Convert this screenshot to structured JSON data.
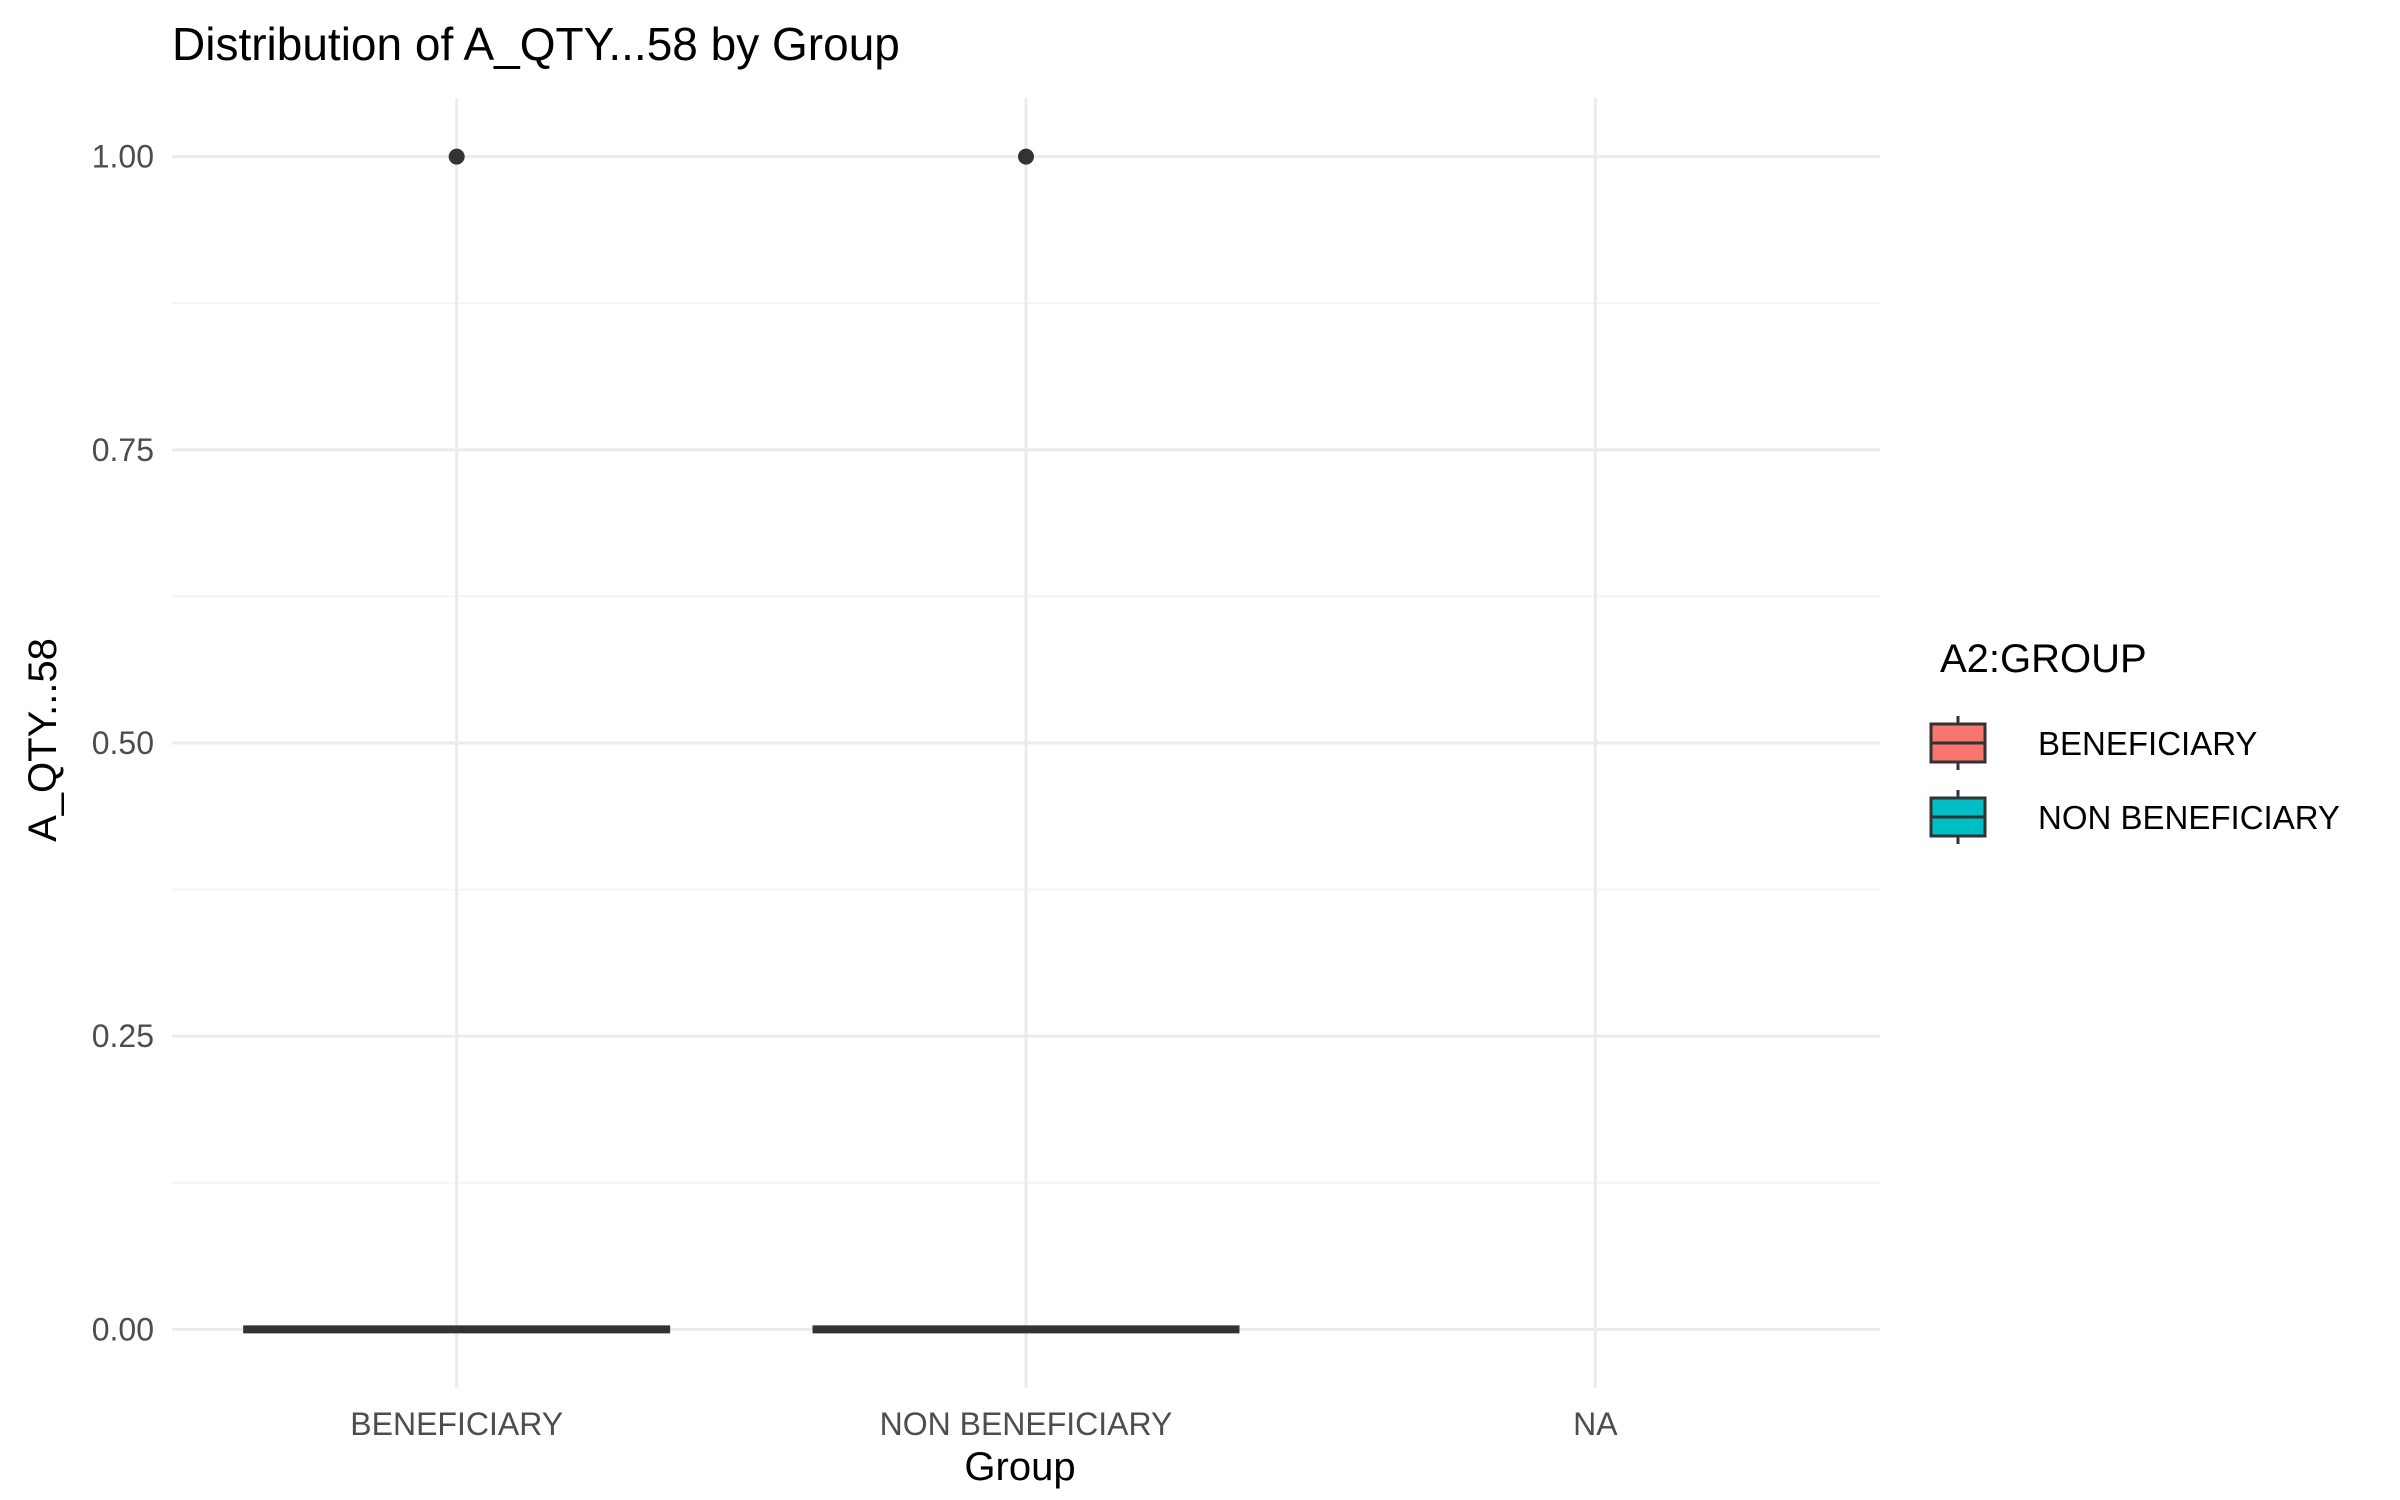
{
  "chart_data": {
    "type": "boxplot",
    "title": "Distribution of A_QTY...58 by Group",
    "xlabel": "Group",
    "ylabel": "A_QTY...58",
    "categories": [
      "BENEFICIARY",
      "NON BENEFICIARY",
      "NA"
    ],
    "ylim": [
      -0.05,
      1.05
    ],
    "yticks": [
      0.0,
      0.25,
      0.5,
      0.75,
      1.0
    ],
    "ytick_labels": [
      "0.00",
      "0.25",
      "0.50",
      "0.75",
      "1.00"
    ],
    "grid": true,
    "series": [
      {
        "category": "BENEFICIARY",
        "fill": "#F8766D",
        "min": 0,
        "q1": 0,
        "median": 0,
        "q3": 0,
        "max": 0,
        "outliers": [
          1
        ]
      },
      {
        "category": "NON BENEFICIARY",
        "fill": "#00BFC4",
        "min": 0,
        "q1": 0,
        "median": 0,
        "q3": 0,
        "max": 0,
        "outliers": [
          1
        ]
      }
    ],
    "legend": {
      "title": "A2:GROUP",
      "position": "right",
      "entries": [
        {
          "label": "BENEFICIARY",
          "color": "#F8766D"
        },
        {
          "label": "NON BENEFICIARY",
          "color": "#00BFC4"
        }
      ]
    }
  }
}
